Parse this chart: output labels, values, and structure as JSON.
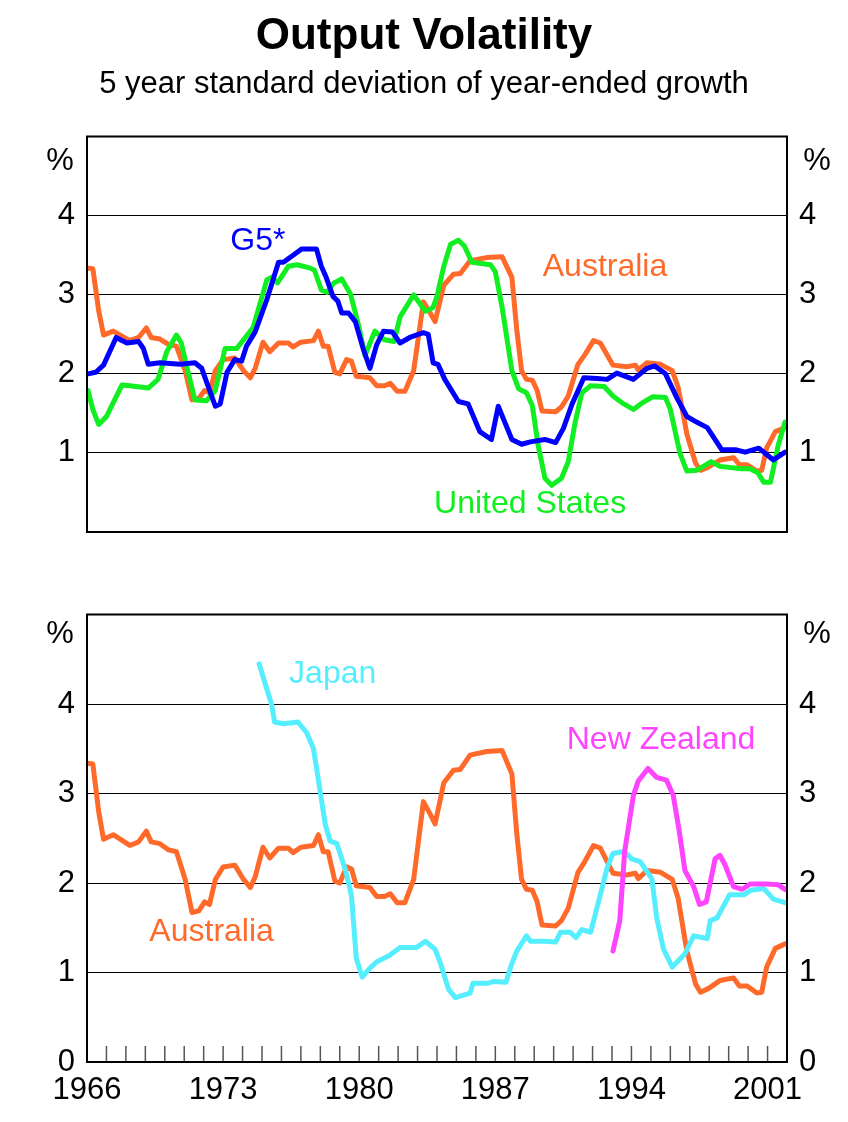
{
  "chart_data": [
    {
      "type": "line",
      "title": "Output Volatility",
      "subtitle": "5 year standard deviation of year-ended growth",
      "ylabel": "%",
      "y2label": "%",
      "xlim": [
        1966,
        2002
      ],
      "ylim": [
        0,
        5
      ],
      "yticks": [
        1,
        2,
        3,
        4
      ],
      "y2lim": [
        0,
        5
      ],
      "y2ticks": [
        1,
        2,
        3,
        4
      ],
      "grid": "y",
      "tick_labels": "y",
      "series": [
        {
          "name": "Australia",
          "color": "#ff6a2a",
          "x": [
            1966.0,
            1966.3,
            1966.6,
            1966.85,
            1967.35,
            1968.2,
            1968.65,
            1969.05,
            1969.3,
            1969.75,
            1970.2,
            1970.6,
            1971.05,
            1971.4,
            1971.75,
            1972.05,
            1972.3,
            1972.6,
            1973.0,
            1973.6,
            1974.05,
            1974.4,
            1974.65,
            1975.05,
            1975.4,
            1975.85,
            1976.35,
            1976.6,
            1977.0,
            1977.65,
            1977.9,
            1978.15,
            1978.4,
            1978.75,
            1979.0,
            1979.35,
            1979.6,
            1979.85,
            1980.55,
            1980.9,
            1981.3,
            1981.6,
            1981.95,
            1982.35,
            1982.8,
            1983.3,
            1983.65,
            1983.9,
            1984.35,
            1984.85,
            1985.2,
            1985.7,
            1986.55,
            1987.35,
            1987.85,
            1988.1,
            1988.35,
            1988.6,
            1988.9,
            1989.15,
            1989.4,
            1990.1,
            1990.4,
            1990.75,
            1991.25,
            1991.6,
            1992.05,
            1992.4,
            1993.05,
            1993.75,
            1994.2,
            1994.35,
            1994.8,
            1995.5,
            1996.1,
            1996.4,
            1996.85,
            1997.3,
            1997.55,
            1997.95,
            1998.55,
            1999.25,
            1999.55,
            1999.95,
            2000.45,
            2000.7,
            2000.95,
            2001.4,
            2001.9
          ],
          "values": [
            3.34,
            3.33,
            2.8,
            2.49,
            2.54,
            2.42,
            2.46,
            2.58,
            2.46,
            2.44,
            2.37,
            2.35,
            2.04,
            1.67,
            1.69,
            1.79,
            1.76,
            2.04,
            2.18,
            2.2,
            2.04,
            1.95,
            2.07,
            2.4,
            2.28,
            2.39,
            2.39,
            2.34,
            2.4,
            2.42,
            2.54,
            2.35,
            2.35,
            2.02,
            2.0,
            2.18,
            2.16,
            1.97,
            1.95,
            1.85,
            1.85,
            1.88,
            1.78,
            1.78,
            2.04,
            2.91,
            2.77,
            2.66,
            3.12,
            3.26,
            3.27,
            3.43,
            3.47,
            3.48,
            3.22,
            2.56,
            2.04,
            1.93,
            1.92,
            1.79,
            1.53,
            1.52,
            1.58,
            1.72,
            2.12,
            2.24,
            2.42,
            2.39,
            2.11,
            2.09,
            2.11,
            2.05,
            2.14,
            2.12,
            2.04,
            1.83,
            1.24,
            0.87,
            0.78,
            0.82,
            0.91,
            0.94,
            0.85,
            0.85,
            0.77,
            0.78,
            1.06,
            1.27,
            1.32
          ]
        },
        {
          "name": "United States",
          "color": "#11ee22",
          "x": [
            1966.05,
            1966.3,
            1966.6,
            1967.0,
            1967.8,
            1968.2,
            1969.15,
            1969.65,
            1970.1,
            1970.6,
            1970.85,
            1971.15,
            1971.55,
            1972.15,
            1972.6,
            1973.1,
            1973.7,
            1974.55,
            1975.25,
            1975.5,
            1975.8,
            1976.35,
            1976.8,
            1977.45,
            1977.7,
            1978.05,
            1978.35,
            1978.7,
            1979.1,
            1979.55,
            1979.95,
            1980.3,
            1980.8,
            1981.3,
            1981.8,
            1982.1,
            1982.8,
            1983.4,
            1983.8,
            1984.0,
            1984.35,
            1984.7,
            1985.1,
            1985.4,
            1985.8,
            1986.75,
            1987.0,
            1987.35,
            1987.85,
            1988.2,
            1988.6,
            1988.9,
            1989.2,
            1989.55,
            1989.9,
            1990.4,
            1990.75,
            1991.1,
            1991.45,
            1991.9,
            1992.6,
            1993.05,
            1993.6,
            1994.1,
            1994.6,
            1995.1,
            1995.75,
            1996.0,
            1996.5,
            1996.85,
            1997.35,
            1998.1,
            1998.55,
            1999.65,
            2000.1,
            2000.5,
            2000.8,
            2001.15,
            2001.55,
            2001.9
          ],
          "values": [
            1.79,
            1.55,
            1.36,
            1.46,
            1.86,
            1.85,
            1.82,
            1.93,
            2.28,
            2.49,
            2.39,
            2.07,
            1.67,
            1.66,
            1.79,
            2.32,
            2.32,
            2.59,
            3.19,
            3.22,
            3.15,
            3.36,
            3.38,
            3.34,
            3.31,
            3.06,
            3.03,
            3.15,
            3.2,
            3.01,
            2.63,
            2.23,
            2.54,
            2.43,
            2.41,
            2.72,
            3.0,
            2.79,
            2.84,
            2.98,
            3.36,
            3.64,
            3.69,
            3.62,
            3.41,
            3.38,
            3.29,
            2.84,
            2.04,
            1.81,
            1.76,
            1.6,
            1.1,
            0.68,
            0.59,
            0.68,
            0.89,
            1.38,
            1.76,
            1.85,
            1.84,
            1.72,
            1.62,
            1.55,
            1.64,
            1.71,
            1.7,
            1.55,
            0.99,
            0.77,
            0.78,
            0.89,
            0.83,
            0.8,
            0.8,
            0.75,
            0.63,
            0.63,
            1.1,
            1.39
          ]
        },
        {
          "name": "G5*",
          "color": "#0000ff",
          "x": [
            1966.05,
            1966.45,
            1966.85,
            1967.5,
            1968.05,
            1968.65,
            1968.9,
            1969.15,
            1969.75,
            1970.8,
            1971.55,
            1971.9,
            1972.35,
            1972.6,
            1972.85,
            1973.2,
            1973.6,
            1973.95,
            1974.2,
            1974.65,
            1975.25,
            1975.85,
            1976.1,
            1976.6,
            1977.05,
            1977.8,
            1978.05,
            1978.3,
            1978.65,
            1978.9,
            1979.1,
            1979.45,
            1979.8,
            1980.2,
            1980.55,
            1980.9,
            1981.25,
            1981.7,
            1982.1,
            1982.6,
            1983.3,
            1983.55,
            1983.8,
            1984.05,
            1984.4,
            1985.1,
            1985.6,
            1986.2,
            1986.8,
            1987.15,
            1987.5,
            1987.85,
            1988.35,
            1988.8,
            1989.55,
            1990.1,
            1990.5,
            1990.95,
            1991.55,
            1992.25,
            1992.75,
            1993.25,
            1994.1,
            1994.8,
            1995.2,
            1995.75,
            1996.35,
            1996.85,
            1997.35,
            1997.9,
            1998.65,
            1999.35,
            1999.85,
            2000.55,
            2001.3,
            2001.9
          ],
          "values": [
            2.0,
            2.02,
            2.11,
            2.46,
            2.39,
            2.41,
            2.32,
            2.12,
            2.14,
            2.12,
            2.14,
            2.07,
            1.76,
            1.59,
            1.62,
            2.02,
            2.18,
            2.16,
            2.35,
            2.53,
            2.94,
            3.41,
            3.41,
            3.5,
            3.58,
            3.58,
            3.36,
            3.22,
            2.98,
            2.92,
            2.77,
            2.77,
            2.66,
            2.32,
            2.07,
            2.37,
            2.54,
            2.53,
            2.39,
            2.46,
            2.52,
            2.5,
            2.14,
            2.12,
            1.93,
            1.65,
            1.62,
            1.27,
            1.17,
            1.59,
            1.38,
            1.17,
            1.11,
            1.14,
            1.17,
            1.13,
            1.31,
            1.62,
            1.95,
            1.94,
            1.93,
            2.01,
            1.93,
            2.07,
            2.1,
            2.0,
            1.69,
            1.46,
            1.39,
            1.32,
            1.04,
            1.04,
            1.01,
            1.06,
            0.91,
            1.01
          ]
        }
      ]
    },
    {
      "type": "line",
      "ylabel": "%",
      "y2label": "%",
      "xlim": [
        1966,
        2002
      ],
      "ylim": [
        0,
        5
      ],
      "yticks": [
        0,
        1,
        2,
        3,
        4
      ],
      "y2lim": [
        0,
        5
      ],
      "y2ticks": [
        0,
        1,
        2,
        3,
        4
      ],
      "grid": "y",
      "xticks": [
        1966,
        {
          "value": 1967,
          "label": null
        },
        {
          "value": 1968,
          "label": null
        },
        {
          "value": 1969,
          "label": null
        },
        {
          "value": 1970,
          "label": null
        },
        {
          "value": 1971,
          "label": null
        },
        {
          "value": 1972,
          "label": null
        },
        1973,
        {
          "value": 1974,
          "label": null
        },
        {
          "value": 1975,
          "label": null
        },
        {
          "value": 1976,
          "label": null
        },
        {
          "value": 1977,
          "label": null
        },
        {
          "value": 1978,
          "label": null
        },
        {
          "value": 1979,
          "label": null
        },
        1980,
        {
          "value": 1981,
          "label": null
        },
        {
          "value": 1982,
          "label": null
        },
        {
          "value": 1983,
          "label": null
        },
        {
          "value": 1984,
          "label": null
        },
        {
          "value": 1985,
          "label": null
        },
        {
          "value": 1986,
          "label": null
        },
        1987,
        {
          "value": 1988,
          "label": null
        },
        {
          "value": 1989,
          "label": null
        },
        {
          "value": 1990,
          "label": null
        },
        {
          "value": 1991,
          "label": null
        },
        {
          "value": 1992,
          "label": null
        },
        {
          "value": 1993,
          "label": null
        },
        1994,
        {
          "value": 1995,
          "label": null
        },
        {
          "value": 1996,
          "label": null
        },
        {
          "value": 1997,
          "label": null
        },
        {
          "value": 1998,
          "label": null
        },
        {
          "value": 1999,
          "label": null
        },
        {
          "value": 2000,
          "label": null
        },
        2001
      ],
      "series": [
        {
          "name": "Australia",
          "color": "#ff6a2a",
          "x": [
            1966.0,
            1966.3,
            1966.6,
            1966.85,
            1967.35,
            1968.2,
            1968.65,
            1969.05,
            1969.3,
            1969.75,
            1970.2,
            1970.6,
            1971.05,
            1971.4,
            1971.75,
            1972.05,
            1972.3,
            1972.6,
            1973.0,
            1973.6,
            1974.05,
            1974.4,
            1974.65,
            1975.05,
            1975.4,
            1975.85,
            1976.35,
            1976.6,
            1977.0,
            1977.65,
            1977.9,
            1978.15,
            1978.4,
            1978.75,
            1979.0,
            1979.35,
            1979.6,
            1979.85,
            1980.55,
            1980.9,
            1981.3,
            1981.6,
            1981.95,
            1982.35,
            1982.8,
            1983.3,
            1983.65,
            1983.9,
            1984.35,
            1984.85,
            1985.2,
            1985.7,
            1986.55,
            1987.35,
            1987.85,
            1988.1,
            1988.35,
            1988.6,
            1988.9,
            1989.15,
            1989.4,
            1990.1,
            1990.4,
            1990.75,
            1991.25,
            1991.6,
            1992.05,
            1992.4,
            1993.05,
            1993.75,
            1994.2,
            1994.35,
            1994.8,
            1995.5,
            1996.1,
            1996.4,
            1996.85,
            1997.3,
            1997.55,
            1997.95,
            1998.55,
            1999.25,
            1999.55,
            1999.95,
            2000.45,
            2000.7,
            2000.95,
            2001.4,
            2001.9
          ],
          "values": [
            3.34,
            3.33,
            2.8,
            2.49,
            2.54,
            2.42,
            2.46,
            2.58,
            2.46,
            2.44,
            2.37,
            2.35,
            2.04,
            1.67,
            1.69,
            1.79,
            1.76,
            2.04,
            2.18,
            2.2,
            2.04,
            1.95,
            2.07,
            2.4,
            2.28,
            2.39,
            2.39,
            2.34,
            2.4,
            2.42,
            2.54,
            2.35,
            2.35,
            2.02,
            2.0,
            2.18,
            2.16,
            1.97,
            1.95,
            1.85,
            1.85,
            1.88,
            1.78,
            1.78,
            2.04,
            2.91,
            2.77,
            2.66,
            3.12,
            3.26,
            3.27,
            3.43,
            3.47,
            3.48,
            3.22,
            2.56,
            2.04,
            1.93,
            1.92,
            1.79,
            1.53,
            1.52,
            1.58,
            1.72,
            2.12,
            2.24,
            2.42,
            2.39,
            2.11,
            2.09,
            2.11,
            2.05,
            2.14,
            2.12,
            2.04,
            1.83,
            1.24,
            0.87,
            0.78,
            0.82,
            0.91,
            0.94,
            0.85,
            0.85,
            0.77,
            0.78,
            1.06,
            1.27,
            1.32
          ]
        },
        {
          "name": "Japan",
          "color": "#55eeff",
          "x": [
            1974.85,
            1975.5,
            1975.65,
            1976.1,
            1976.85,
            1977.3,
            1977.65,
            1977.9,
            1978.25,
            1978.5,
            1978.85,
            1979.3,
            1979.6,
            1979.85,
            1980.15,
            1980.55,
            1980.9,
            1981.55,
            1982.1,
            1982.95,
            1983.4,
            1983.9,
            1984.15,
            1984.6,
            1984.95,
            1985.7,
            1985.85,
            1986.65,
            1986.9,
            1987.55,
            1987.85,
            1988.1,
            1988.6,
            1988.8,
            1989.55,
            1990.1,
            1990.35,
            1990.85,
            1991.15,
            1991.45,
            1991.9,
            1992.2,
            1992.75,
            1993.05,
            1993.5,
            1993.85,
            1994.0,
            1994.45,
            1994.7,
            1995.05,
            1995.3,
            1995.65,
            1996.1,
            1996.75,
            1997.2,
            1997.9,
            1998.05,
            1998.4,
            1999.05,
            1999.8,
            2000.15,
            2000.8,
            2001.3,
            2001.9
          ],
          "values": [
            4.45,
            3.99,
            3.8,
            3.78,
            3.8,
            3.68,
            3.5,
            3.15,
            2.66,
            2.47,
            2.44,
            2.14,
            1.86,
            1.16,
            0.95,
            1.05,
            1.12,
            1.19,
            1.28,
            1.28,
            1.35,
            1.26,
            1.12,
            0.81,
            0.72,
            0.77,
            0.88,
            0.88,
            0.9,
            0.89,
            1.1,
            1.24,
            1.41,
            1.35,
            1.35,
            1.34,
            1.45,
            1.45,
            1.39,
            1.48,
            1.45,
            1.7,
            2.17,
            2.33,
            2.35,
            2.31,
            2.27,
            2.24,
            2.16,
            2.05,
            1.61,
            1.26,
            1.06,
            1.21,
            1.41,
            1.38,
            1.58,
            1.61,
            1.87,
            1.87,
            1.92,
            1.94,
            1.82,
            1.78
          ]
        },
        {
          "name": "New Zealand",
          "color": "#ff44ff",
          "x": [
            1993.05,
            1993.4,
            1993.65,
            1994.1,
            1994.35,
            1994.85,
            1995.3,
            1995.8,
            1996.15,
            1996.45,
            1996.75,
            1997.2,
            1997.5,
            1997.85,
            1998.3,
            1998.55,
            1998.8,
            1999.25,
            1999.7,
            2000.1,
            2000.95,
            2001.55,
            2001.9
          ],
          "values": [
            1.24,
            1.58,
            2.35,
            2.98,
            3.14,
            3.28,
            3.18,
            3.15,
            2.98,
            2.59,
            2.14,
            1.96,
            1.76,
            1.79,
            2.27,
            2.31,
            2.21,
            1.96,
            1.93,
            1.99,
            1.99,
            1.98,
            1.93
          ]
        }
      ]
    }
  ]
}
